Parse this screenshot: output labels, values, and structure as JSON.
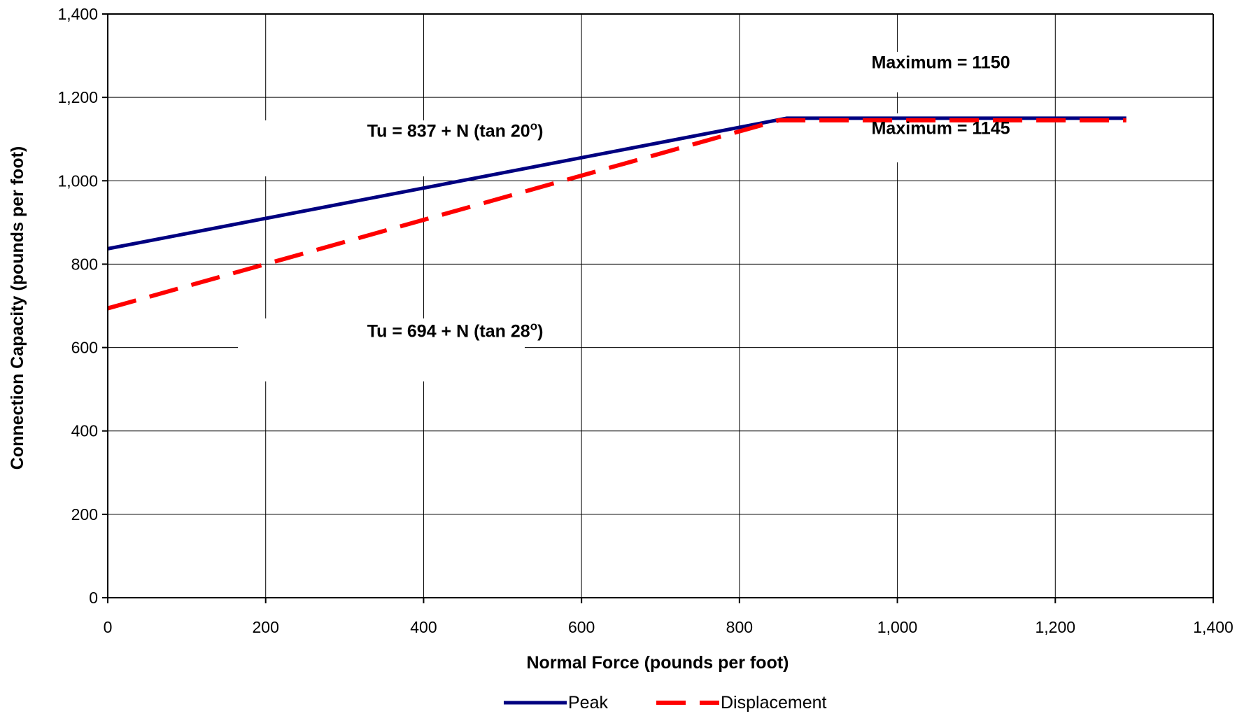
{
  "chart_data": {
    "type": "line",
    "xlabel": "Normal Force (pounds per foot)",
    "ylabel": "Connection Capacity (pounds per foot)",
    "xlim": [
      0,
      1400
    ],
    "ylim": [
      0,
      1400
    ],
    "x_ticks": [
      0,
      200,
      400,
      600,
      800,
      1000,
      1200,
      1400
    ],
    "y_ticks": [
      0,
      200,
      400,
      600,
      800,
      1000,
      1200,
      1400
    ],
    "x_tick_labels": [
      "0",
      "200",
      "400",
      "600",
      "800",
      "1,000",
      "1,200",
      "1,400"
    ],
    "y_tick_labels": [
      "0",
      "200",
      "400",
      "600",
      "800",
      "1,000",
      "1,200",
      "1,400"
    ],
    "grid": true,
    "legend_position": "bottom-center",
    "series": [
      {
        "name": "Peak",
        "color": "#000080",
        "style": "solid",
        "x": [
          0,
          860,
          1290
        ],
        "y": [
          837,
          1150,
          1150
        ]
      },
      {
        "name": "Displacement",
        "color": "#FF0000",
        "style": "dashed",
        "x": [
          0,
          850,
          1290
        ],
        "y": [
          694,
          1145,
          1145
        ]
      }
    ],
    "annotations": [
      {
        "id": "eq1",
        "text_main": "Tu = 837 + N (tan 20",
        "superscript": "o",
        "text_end": ")",
        "x": 440,
        "y": 1105
      },
      {
        "id": "eq2",
        "text_main": "Tu = 694 + N (tan 28",
        "superscript": "o",
        "text_end": ")",
        "x": 440,
        "y": 625
      },
      {
        "id": "max1",
        "text": "Maximum = 1150",
        "x": 1055,
        "y": 1270
      },
      {
        "id": "max2",
        "text": "Maximum = 1145",
        "x": 1055,
        "y": 1112
      }
    ]
  }
}
